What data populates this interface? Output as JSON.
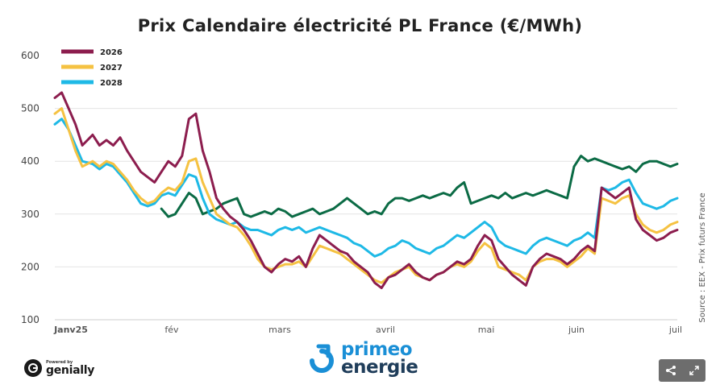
{
  "chart_data": {
    "type": "line",
    "title": "Prix Calendaire électricité PL France (€/MWh)",
    "xlabel": "",
    "ylabel": "",
    "ylim": [
      100,
      600
    ],
    "y_ticks": [
      100,
      200,
      300,
      400,
      500,
      600
    ],
    "x_ticks": [
      "Janv25",
      "fév",
      "mars",
      "avril",
      "mai",
      "juin",
      "juil"
    ],
    "x_range": [
      "2025-01-01",
      "2025-07-01"
    ],
    "grid": "horizontal",
    "legend_position": "top-left",
    "source": "Source : EEX - Prix futurs France",
    "series": [
      {
        "name": "2026",
        "color": "#8c1d4e",
        "x": [
          "2025-01-01",
          "2025-01-03",
          "2025-01-05",
          "2025-01-07",
          "2025-01-09",
          "2025-01-12",
          "2025-01-14",
          "2025-01-16",
          "2025-01-18",
          "2025-01-20",
          "2025-01-22",
          "2025-01-24",
          "2025-01-26",
          "2025-01-28",
          "2025-01-30",
          "2025-02-01",
          "2025-02-03",
          "2025-02-05",
          "2025-02-07",
          "2025-02-09",
          "2025-02-11",
          "2025-02-13",
          "2025-02-15",
          "2025-02-17",
          "2025-02-19",
          "2025-02-21",
          "2025-02-23",
          "2025-02-25",
          "2025-02-27",
          "2025-03-01",
          "2025-03-03",
          "2025-03-05",
          "2025-03-07",
          "2025-03-09",
          "2025-03-11",
          "2025-03-13",
          "2025-03-15",
          "2025-03-17",
          "2025-03-19",
          "2025-03-21",
          "2025-03-23",
          "2025-03-25",
          "2025-03-27",
          "2025-03-29",
          "2025-03-31",
          "2025-04-02",
          "2025-04-04",
          "2025-04-06",
          "2025-04-08",
          "2025-04-10",
          "2025-04-12",
          "2025-04-14",
          "2025-04-16",
          "2025-04-18",
          "2025-04-20",
          "2025-04-22",
          "2025-04-24",
          "2025-04-26",
          "2025-04-28",
          "2025-04-30",
          "2025-05-02",
          "2025-05-04",
          "2025-05-06",
          "2025-05-08",
          "2025-05-10",
          "2025-05-12",
          "2025-05-14",
          "2025-05-16",
          "2025-05-18",
          "2025-05-20",
          "2025-05-22",
          "2025-05-24",
          "2025-05-26",
          "2025-05-28",
          "2025-05-30",
          "2025-06-01",
          "2025-06-03",
          "2025-06-05",
          "2025-06-07",
          "2025-06-09",
          "2025-06-11",
          "2025-06-13",
          "2025-06-15",
          "2025-06-17",
          "2025-06-19",
          "2025-06-21",
          "2025-06-23",
          "2025-06-25",
          "2025-06-27",
          "2025-06-29",
          "2025-07-01"
        ],
        "y": [
          520,
          530,
          500,
          470,
          430,
          450,
          430,
          440,
          430,
          445,
          420,
          400,
          380,
          370,
          360,
          380,
          400,
          390,
          410,
          480,
          490,
          420,
          380,
          330,
          310,
          295,
          285,
          270,
          250,
          225,
          200,
          190,
          205,
          215,
          210,
          220,
          200,
          235,
          260,
          250,
          240,
          230,
          225,
          210,
          200,
          190,
          170,
          160,
          180,
          185,
          195,
          205,
          190,
          180,
          175,
          185,
          190,
          200,
          210,
          205,
          215,
          240,
          260,
          250,
          215,
          200,
          185,
          175,
          165,
          200,
          215,
          225,
          220,
          215,
          205,
          215,
          230,
          240,
          230,
          350,
          340,
          330,
          340,
          350,
          290,
          270,
          260,
          250,
          255,
          265,
          270
        ]
      },
      {
        "name": "2027",
        "color": "#f5c242",
        "x": [
          "2025-01-01",
          "2025-01-03",
          "2025-01-05",
          "2025-01-07",
          "2025-01-09",
          "2025-01-12",
          "2025-01-14",
          "2025-01-16",
          "2025-01-18",
          "2025-01-20",
          "2025-01-22",
          "2025-01-24",
          "2025-01-26",
          "2025-01-28",
          "2025-01-30",
          "2025-02-01",
          "2025-02-03",
          "2025-02-05",
          "2025-02-07",
          "2025-02-09",
          "2025-02-11",
          "2025-02-13",
          "2025-02-15",
          "2025-02-17",
          "2025-02-19",
          "2025-02-21",
          "2025-02-23",
          "2025-02-25",
          "2025-02-27",
          "2025-03-01",
          "2025-03-03",
          "2025-03-05",
          "2025-03-07",
          "2025-03-09",
          "2025-03-11",
          "2025-03-13",
          "2025-03-15",
          "2025-03-17",
          "2025-03-19",
          "2025-03-21",
          "2025-03-23",
          "2025-03-25",
          "2025-03-27",
          "2025-03-29",
          "2025-03-31",
          "2025-04-02",
          "2025-04-04",
          "2025-04-06",
          "2025-04-08",
          "2025-04-10",
          "2025-04-12",
          "2025-04-14",
          "2025-04-16",
          "2025-04-18",
          "2025-04-20",
          "2025-04-22",
          "2025-04-24",
          "2025-04-26",
          "2025-04-28",
          "2025-04-30",
          "2025-05-02",
          "2025-05-04",
          "2025-05-06",
          "2025-05-08",
          "2025-05-10",
          "2025-05-12",
          "2025-05-14",
          "2025-05-16",
          "2025-05-18",
          "2025-05-20",
          "2025-05-22",
          "2025-05-24",
          "2025-05-26",
          "2025-05-28",
          "2025-05-30",
          "2025-06-01",
          "2025-06-03",
          "2025-06-05",
          "2025-06-07",
          "2025-06-09",
          "2025-06-11",
          "2025-06-13",
          "2025-06-15",
          "2025-06-17",
          "2025-06-19",
          "2025-06-21",
          "2025-06-23",
          "2025-06-25",
          "2025-06-27",
          "2025-06-29",
          "2025-07-01"
        ],
        "y": [
          490,
          500,
          460,
          420,
          390,
          400,
          390,
          400,
          395,
          380,
          365,
          345,
          330,
          320,
          325,
          340,
          350,
          345,
          360,
          400,
          405,
          360,
          330,
          300,
          290,
          280,
          275,
          260,
          240,
          215,
          200,
          195,
          200,
          205,
          205,
          210,
          200,
          220,
          240,
          235,
          230,
          225,
          215,
          205,
          195,
          185,
          175,
          170,
          180,
          190,
          195,
          200,
          185,
          180,
          175,
          185,
          190,
          200,
          205,
          200,
          210,
          230,
          245,
          235,
          200,
          195,
          190,
          185,
          175,
          200,
          210,
          215,
          215,
          210,
          200,
          210,
          220,
          235,
          225,
          330,
          325,
          320,
          330,
          335,
          300,
          280,
          270,
          265,
          270,
          280,
          285
        ]
      },
      {
        "name": "2028",
        "color": "#1eb9e6",
        "x": [
          "2025-01-01",
          "2025-01-03",
          "2025-01-05",
          "2025-01-07",
          "2025-01-09",
          "2025-01-12",
          "2025-01-14",
          "2025-01-16",
          "2025-01-18",
          "2025-01-20",
          "2025-01-22",
          "2025-01-24",
          "2025-01-26",
          "2025-01-28",
          "2025-01-30",
          "2025-02-01",
          "2025-02-03",
          "2025-02-05",
          "2025-02-07",
          "2025-02-09",
          "2025-02-11",
          "2025-02-13",
          "2025-02-15",
          "2025-02-17",
          "2025-02-19",
          "2025-02-21",
          "2025-02-23",
          "2025-02-25",
          "2025-02-27",
          "2025-03-01",
          "2025-03-03",
          "2025-03-05",
          "2025-03-07",
          "2025-03-09",
          "2025-03-11",
          "2025-03-13",
          "2025-03-15",
          "2025-03-17",
          "2025-03-19",
          "2025-03-21",
          "2025-03-23",
          "2025-03-25",
          "2025-03-27",
          "2025-03-29",
          "2025-03-31",
          "2025-04-02",
          "2025-04-04",
          "2025-04-06",
          "2025-04-08",
          "2025-04-10",
          "2025-04-12",
          "2025-04-14",
          "2025-04-16",
          "2025-04-18",
          "2025-04-20",
          "2025-04-22",
          "2025-04-24",
          "2025-04-26",
          "2025-04-28",
          "2025-04-30",
          "2025-05-02",
          "2025-05-04",
          "2025-05-06",
          "2025-05-08",
          "2025-05-10",
          "2025-05-12",
          "2025-05-14",
          "2025-05-16",
          "2025-05-18",
          "2025-05-20",
          "2025-05-22",
          "2025-05-24",
          "2025-05-26",
          "2025-05-28",
          "2025-05-30",
          "2025-06-01",
          "2025-06-03",
          "2025-06-05",
          "2025-06-07",
          "2025-06-09",
          "2025-06-11",
          "2025-06-13",
          "2025-06-15",
          "2025-06-17",
          "2025-06-19",
          "2025-06-21",
          "2025-06-23",
          "2025-06-25",
          "2025-06-27",
          "2025-06-29",
          "2025-07-01"
        ],
        "y": [
          470,
          480,
          460,
          430,
          400,
          395,
          385,
          395,
          390,
          375,
          360,
          340,
          320,
          315,
          320,
          335,
          340,
          335,
          355,
          375,
          370,
          330,
          300,
          290,
          285,
          280,
          285,
          275,
          270,
          270,
          265,
          260,
          270,
          275,
          270,
          275,
          265,
          270,
          275,
          270,
          265,
          260,
          255,
          245,
          240,
          230,
          220,
          225,
          235,
          240,
          250,
          245,
          235,
          230,
          225,
          235,
          240,
          250,
          260,
          255,
          265,
          275,
          285,
          275,
          250,
          240,
          235,
          230,
          225,
          240,
          250,
          255,
          250,
          245,
          240,
          250,
          255,
          265,
          255,
          350,
          345,
          350,
          360,
          365,
          340,
          320,
          315,
          310,
          315,
          325,
          330
        ]
      },
      {
        "name": "",
        "color": "#0b6b45",
        "x": [
          "2025-02-01",
          "2025-02-03",
          "2025-02-05",
          "2025-02-07",
          "2025-02-09",
          "2025-02-11",
          "2025-02-13",
          "2025-02-15",
          "2025-02-17",
          "2025-02-19",
          "2025-02-21",
          "2025-02-23",
          "2025-02-25",
          "2025-02-27",
          "2025-03-01",
          "2025-03-03",
          "2025-03-05",
          "2025-03-07",
          "2025-03-09",
          "2025-03-11",
          "2025-03-13",
          "2025-03-15",
          "2025-03-17",
          "2025-03-19",
          "2025-03-21",
          "2025-03-23",
          "2025-03-25",
          "2025-03-27",
          "2025-03-29",
          "2025-03-31",
          "2025-04-02",
          "2025-04-04",
          "2025-04-06",
          "2025-04-08",
          "2025-04-10",
          "2025-04-12",
          "2025-04-14",
          "2025-04-16",
          "2025-04-18",
          "2025-04-20",
          "2025-04-22",
          "2025-04-24",
          "2025-04-26",
          "2025-04-28",
          "2025-04-30",
          "2025-05-02",
          "2025-05-04",
          "2025-05-06",
          "2025-05-08",
          "2025-05-10",
          "2025-05-12",
          "2025-05-14",
          "2025-05-16",
          "2025-05-18",
          "2025-05-20",
          "2025-05-22",
          "2025-05-24",
          "2025-05-26",
          "2025-05-28",
          "2025-05-30",
          "2025-06-01",
          "2025-06-03",
          "2025-06-05",
          "2025-06-07",
          "2025-06-09",
          "2025-06-11",
          "2025-06-13",
          "2025-06-15",
          "2025-06-17",
          "2025-06-19",
          "2025-06-21",
          "2025-06-23",
          "2025-06-25",
          "2025-06-27",
          "2025-06-29",
          "2025-07-01"
        ],
        "y": [
          310,
          295,
          300,
          320,
          340,
          330,
          300,
          305,
          310,
          320,
          325,
          330,
          300,
          295,
          300,
          305,
          300,
          310,
          305,
          295,
          300,
          305,
          310,
          300,
          305,
          310,
          320,
          330,
          320,
          310,
          300,
          305,
          300,
          320,
          330,
          330,
          325,
          330,
          335,
          330,
          335,
          340,
          335,
          350,
          360,
          320,
          325,
          330,
          335,
          330,
          340,
          330,
          335,
          340,
          335,
          340,
          345,
          340,
          335,
          330,
          390,
          410,
          400,
          405,
          400,
          395,
          390,
          385,
          390,
          380,
          395,
          400,
          400,
          395,
          390,
          395
        ]
      }
    ]
  },
  "branding": {
    "genially_powered": "Powered by",
    "genially_name": "genially",
    "brand_line1": "primeo",
    "brand_line2": "energie"
  },
  "icons": {
    "share": "share-icon",
    "fullscreen": "fullscreen-icon"
  }
}
